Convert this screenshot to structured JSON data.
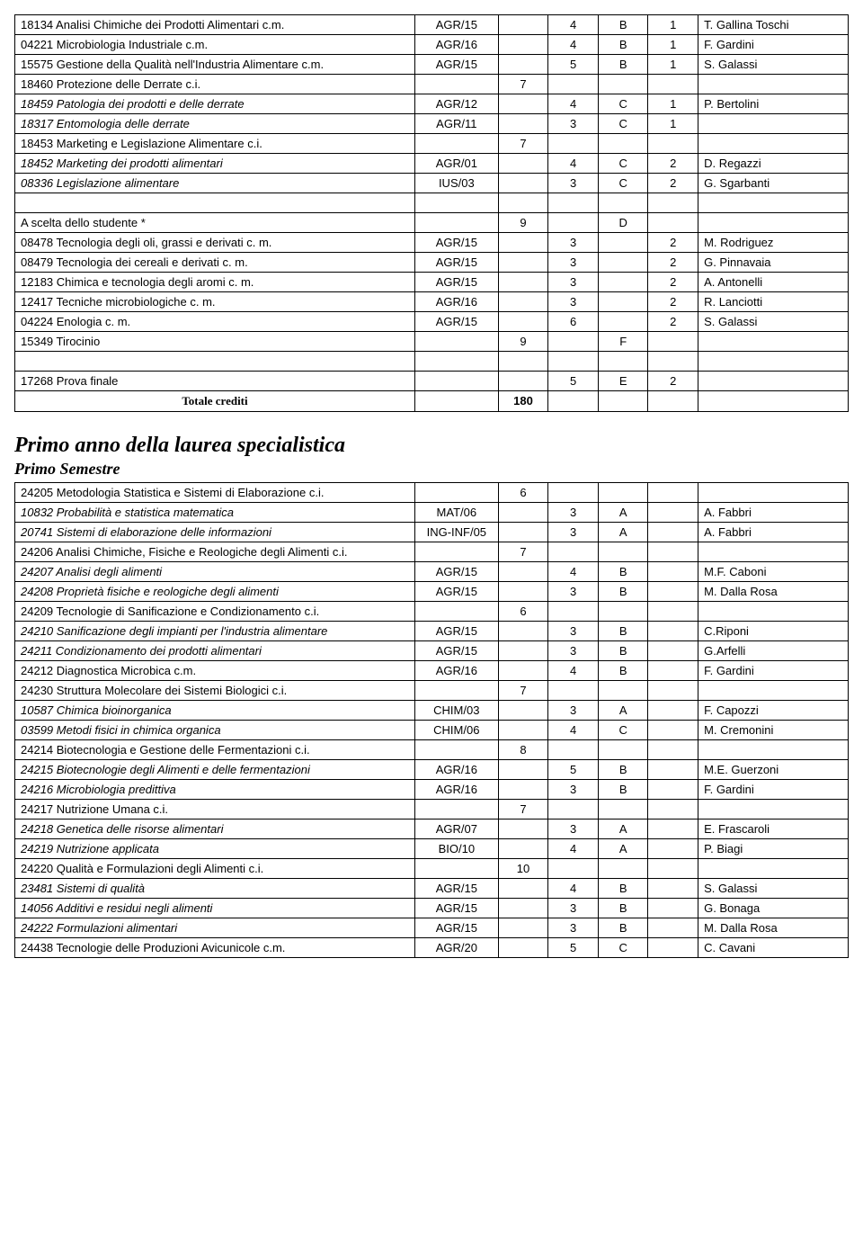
{
  "table1": {
    "rows": [
      {
        "name": "18134 Analisi Chimiche dei Prodotti Alimentari c.m.",
        "code": "AGR/15",
        "n1": "",
        "n2": "4",
        "letter": "B",
        "n3": "1",
        "inst": "T. Gallina Toschi",
        "italic": false
      },
      {
        "name": "04221 Microbiologia Industriale c.m.",
        "code": "AGR/16",
        "n1": "",
        "n2": "4",
        "letter": "B",
        "n3": "1",
        "inst": "F. Gardini",
        "italic": false
      },
      {
        "name": "15575 Gestione della Qualità nell'Industria Alimentare c.m.",
        "code": "AGR/15",
        "n1": "",
        "n2": "5",
        "letter": "B",
        "n3": "1",
        "inst": "S. Galassi",
        "italic": false
      },
      {
        "name": "18460 Protezione delle Derrate c.i.",
        "code": "",
        "n1": "7",
        "n2": "",
        "letter": "",
        "n3": "",
        "inst": "",
        "italic": false
      },
      {
        "name": "18459 Patologia dei prodotti e delle derrate",
        "code": "AGR/12",
        "n1": "",
        "n2": "4",
        "letter": "C",
        "n3": "1",
        "inst": "P. Bertolini",
        "italic": true
      },
      {
        "name": "18317 Entomologia delle derrate",
        "code": "AGR/11",
        "n1": "",
        "n2": "3",
        "letter": "C",
        "n3": "1",
        "inst": "",
        "italic": true
      },
      {
        "name": "18453 Marketing e Legislazione Alimentare c.i.",
        "code": "",
        "n1": "7",
        "n2": "",
        "letter": "",
        "n3": "",
        "inst": "",
        "italic": false
      },
      {
        "name": "18452 Marketing dei prodotti alimentari",
        "code": "AGR/01",
        "n1": "",
        "n2": "4",
        "letter": "C",
        "n3": "2",
        "inst": "D. Regazzi",
        "italic": true
      },
      {
        "name": "08336 Legislazione alimentare",
        "code": "IUS/03",
        "n1": "",
        "n2": "3",
        "letter": "C",
        "n3": "2",
        "inst": "G. Sgarbanti",
        "italic": true
      },
      {
        "name": "",
        "code": "",
        "n1": "",
        "n2": "",
        "letter": "",
        "n3": "",
        "inst": "",
        "italic": false,
        "empty": true
      },
      {
        "name": "A scelta dello studente *",
        "code": "",
        "n1": "9",
        "n2": "",
        "letter": "D",
        "n3": "",
        "inst": "",
        "italic": false
      },
      {
        "name": "08478 Tecnologia degli oli, grassi e derivati c. m.",
        "code": "AGR/15",
        "n1": "",
        "n2": "3",
        "letter": "",
        "n3": "2",
        "inst": "M. Rodriguez",
        "italic": false
      },
      {
        "name": "08479 Tecnologia dei cereali e derivati c. m.",
        "code": "AGR/15",
        "n1": "",
        "n2": "3",
        "letter": "",
        "n3": "2",
        "inst": "G. Pinnavaia",
        "italic": false
      },
      {
        "name": "12183 Chimica e tecnologia degli aromi c. m.",
        "code": "AGR/15",
        "n1": "",
        "n2": "3",
        "letter": "",
        "n3": "2",
        "inst": "A. Antonelli",
        "italic": false
      },
      {
        "name": "12417 Tecniche microbiologiche c. m.",
        "code": "AGR/16",
        "n1": "",
        "n2": "3",
        "letter": "",
        "n3": "2",
        "inst": "R. Lanciotti",
        "italic": false
      },
      {
        "name": "04224 Enologia c. m.",
        "code": "AGR/15",
        "n1": "",
        "n2": "6",
        "letter": "",
        "n3": "2",
        "inst": "S. Galassi",
        "italic": false
      },
      {
        "name": "15349 Tirocinio",
        "code": "",
        "n1": "9",
        "n2": "",
        "letter": "F",
        "n3": "",
        "inst": "",
        "italic": false
      },
      {
        "name": "",
        "code": "",
        "n1": "",
        "n2": "",
        "letter": "",
        "n3": "",
        "inst": "",
        "italic": false,
        "empty": true
      },
      {
        "name": "17268 Prova finale",
        "code": "",
        "n1": "",
        "n2": "5",
        "letter": "E",
        "n3": "2",
        "inst": "",
        "italic": false
      },
      {
        "name": "Totale crediti",
        "code": "",
        "n1": "180",
        "n2": "",
        "letter": "",
        "n3": "",
        "inst": "",
        "italic": false,
        "bold": true,
        "center": true,
        "serif": true
      }
    ]
  },
  "heading1": "Primo  anno della laurea specialistica",
  "heading2": "Primo Semestre",
  "table2": {
    "rows": [
      {
        "name": "24205 Metodologia Statistica e Sistemi di Elaborazione c.i.",
        "code": "",
        "n1": "6",
        "n2": "",
        "letter": "",
        "n3": "",
        "inst": "",
        "italic": false
      },
      {
        "name": "10832 Probabilità e statistica matematica",
        "code": "MAT/06",
        "n1": "",
        "n2": "3",
        "letter": "A",
        "n3": "",
        "inst": "A.  Fabbri",
        "italic": true
      },
      {
        "name": "20741 Sistemi di elaborazione delle informazioni",
        "code": "ING-INF/05",
        "n1": "",
        "n2": "3",
        "letter": "A",
        "n3": "",
        "inst": "A. Fabbri",
        "italic": true
      },
      {
        "name": "24206 Analisi Chimiche, Fisiche e Reologiche degli Alimenti c.i.",
        "code": "",
        "n1": "7",
        "n2": "",
        "letter": "",
        "n3": "",
        "inst": "",
        "italic": false
      },
      {
        "name": "24207 Analisi degli alimenti",
        "code": "AGR/15",
        "n1": "",
        "n2": "4",
        "letter": "B",
        "n3": "",
        "inst": "M.F. Caboni",
        "italic": true
      },
      {
        "name": "24208 Proprietà fisiche e reologiche degli alimenti",
        "code": "AGR/15",
        "n1": "",
        "n2": "3",
        "letter": "B",
        "n3": "",
        "inst": "M. Dalla Rosa",
        "italic": true
      },
      {
        "name": "24209 Tecnologie di Sanificazione e Condizionamento c.i.",
        "code": "",
        "n1": "6",
        "n2": "",
        "letter": "",
        "n3": "",
        "inst": "",
        "italic": false
      },
      {
        "name": "24210 Sanificazione degli impianti per l'industria alimentare",
        "code": "AGR/15",
        "n1": "",
        "n2": "3",
        "letter": "B",
        "n3": "",
        "inst": "C.Riponi",
        "italic": true
      },
      {
        "name": "24211 Condizionamento dei prodotti alimentari",
        "code": "AGR/15",
        "n1": "",
        "n2": "3",
        "letter": "B",
        "n3": "",
        "inst": "G.Arfelli",
        "italic": true
      },
      {
        "name": "24212 Diagnostica Microbica c.m.",
        "code": "AGR/16",
        "n1": "",
        "n2": "4",
        "letter": "B",
        "n3": "",
        "inst": "F. Gardini",
        "italic": false
      },
      {
        "name": "24230 Struttura Molecolare dei Sistemi Biologici c.i.",
        "code": "",
        "n1": "7",
        "n2": "",
        "letter": "",
        "n3": "",
        "inst": "",
        "italic": false
      },
      {
        "name": "10587 Chimica bioinorganica",
        "code": "CHIM/03",
        "n1": "",
        "n2": "3",
        "letter": "A",
        "n3": "",
        "inst": "F. Capozzi",
        "italic": true
      },
      {
        "name": "03599 Metodi fisici in chimica organica",
        "code": "CHIM/06",
        "n1": "",
        "n2": "4",
        "letter": "C",
        "n3": "",
        "inst": "M. Cremonini",
        "italic": true
      },
      {
        "name": "24214 Biotecnologia e Gestione delle Fermentazioni c.i.",
        "code": "",
        "n1": "8",
        "n2": "",
        "letter": "",
        "n3": "",
        "inst": "",
        "italic": false
      },
      {
        "name": "24215 Biotecnologie degli Alimenti e delle fermentazioni",
        "code": "AGR/16",
        "n1": "",
        "n2": "5",
        "letter": "B",
        "n3": "",
        "inst": "M.E. Guerzoni",
        "italic": true
      },
      {
        "name": "24216 Microbiologia predittiva",
        "code": "AGR/16",
        "n1": "",
        "n2": "3",
        "letter": "B",
        "n3": "",
        "inst": "F. Gardini",
        "italic": true
      },
      {
        "name": "24217 Nutrizione Umana c.i.",
        "code": "",
        "n1": "7",
        "n2": "",
        "letter": "",
        "n3": "",
        "inst": "",
        "italic": false
      },
      {
        "name": "24218 Genetica delle risorse alimentari",
        "code": "AGR/07",
        "n1": "",
        "n2": "3",
        "letter": "A",
        "n3": "",
        "inst": "E. Frascaroli",
        "italic": true
      },
      {
        "name": "24219 Nutrizione applicata",
        "code": "BIO/10",
        "n1": "",
        "n2": "4",
        "letter": "A",
        "n3": "",
        "inst": "P. Biagi",
        "italic": true
      },
      {
        "name": "24220 Qualità e Formulazioni degli Alimenti c.i.",
        "code": "",
        "n1": "10",
        "n2": "",
        "letter": "",
        "n3": "",
        "inst": "",
        "italic": false
      },
      {
        "name": "23481 Sistemi di qualità",
        "code": "AGR/15",
        "n1": "",
        "n2": "4",
        "letter": "B",
        "n3": "",
        "inst": "S. Galassi",
        "italic": true
      },
      {
        "name": "14056 Additivi e residui negli alimenti",
        "code": "AGR/15",
        "n1": "",
        "n2": "3",
        "letter": "B",
        "n3": "",
        "inst": "G. Bonaga",
        "italic": true
      },
      {
        "name": "24222 Formulazioni alimentari",
        "code": "AGR/15",
        "n1": "",
        "n2": "3",
        "letter": "B",
        "n3": "",
        "inst": "M. Dalla Rosa",
        "italic": true
      },
      {
        "name": "24438 Tecnologie delle Produzioni Avicunicole c.m.",
        "code": "AGR/20",
        "n1": "",
        "n2": "5",
        "letter": "C",
        "n3": "",
        "inst": "C. Cavani",
        "italic": false
      }
    ]
  }
}
